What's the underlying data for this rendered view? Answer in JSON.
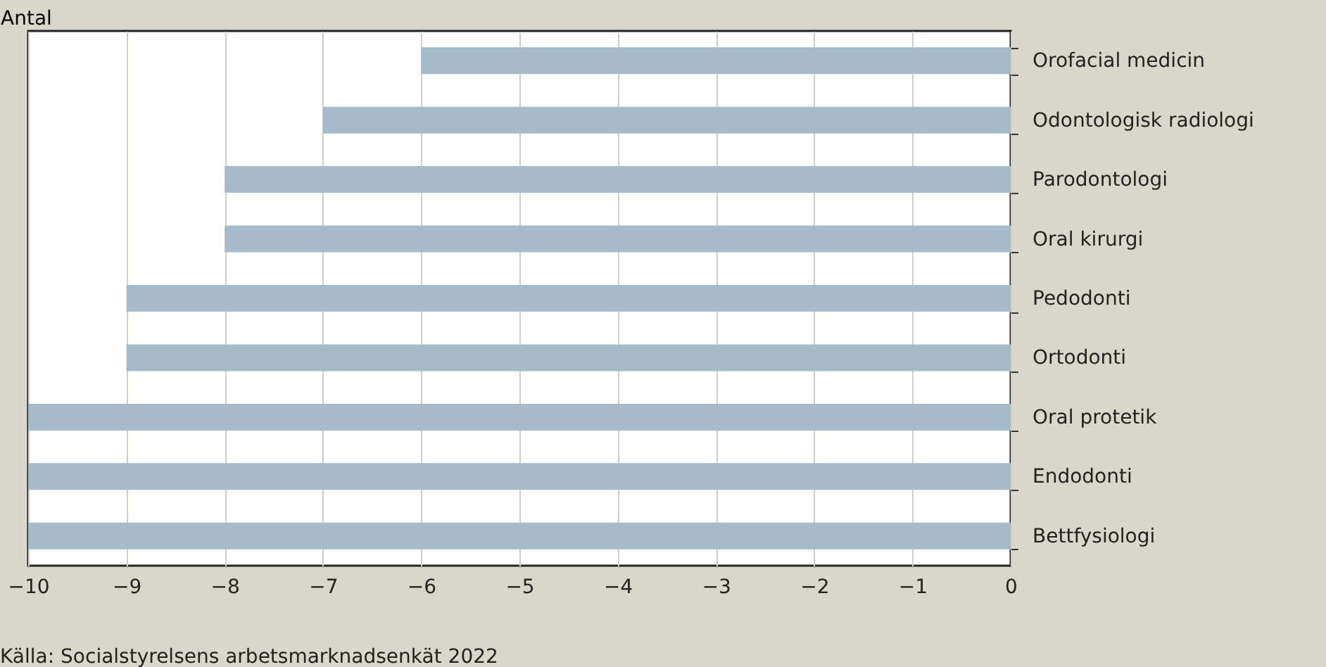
{
  "chart_data": {
    "type": "bar",
    "orientation": "horizontal",
    "xlabel": "Antal",
    "categories": [
      "Orofacial medicin",
      "Odontologisk radiologi",
      "Parodontologi",
      "Oral kirurgi",
      "Pedodonti",
      "Ortodonti",
      "Oral protetik",
      "Endodonti",
      "Bettfysiologi"
    ],
    "values": [
      -6,
      -7,
      -8,
      -8,
      -9,
      -9,
      -10,
      -10,
      -10
    ],
    "color": "#a5bcc8",
    "xlim": [
      -10,
      0
    ],
    "xticks": [
      -10,
      -9,
      -8,
      -7,
      -6,
      -5,
      -4,
      -3,
      -2,
      -1,
      0
    ],
    "grid": "x",
    "annotations": [
      "Källa: Socialstyrelsens arbetsmarknadsenkät 2022"
    ]
  }
}
